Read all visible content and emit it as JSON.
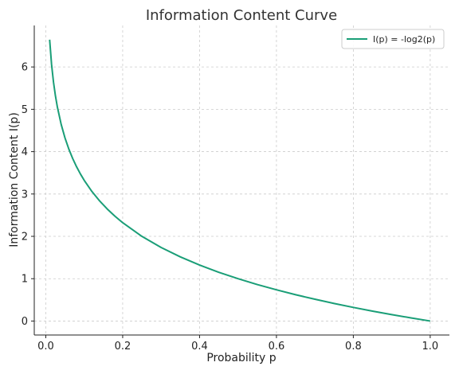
{
  "chart_data": {
    "type": "line",
    "title": "Information Content Curve",
    "xlabel": "Probability p",
    "ylabel": "Information Content I(p)",
    "xlim": [
      -0.03,
      1.05
    ],
    "ylim": [
      -0.33,
      6.98
    ],
    "x_ticks": [
      0.0,
      0.2,
      0.4,
      0.6,
      0.8,
      1.0
    ],
    "x_tick_labels": [
      "0.0",
      "0.2",
      "0.4",
      "0.6",
      "0.8",
      "1.0"
    ],
    "y_ticks": [
      0,
      1,
      2,
      3,
      4,
      5,
      6
    ],
    "y_tick_labels": [
      "0",
      "1",
      "2",
      "3",
      "4",
      "5",
      "6"
    ],
    "grid": true,
    "legend_position": "top-right",
    "series": [
      {
        "name": "I(p) = -log2(p)",
        "color": "#1a9e77",
        "x": [
          0.01,
          0.015,
          0.02,
          0.025,
          0.03,
          0.04,
          0.05,
          0.06,
          0.07,
          0.08,
          0.09,
          0.1,
          0.12,
          0.14,
          0.16,
          0.18,
          0.2,
          0.25,
          0.3,
          0.35,
          0.4,
          0.45,
          0.5,
          0.55,
          0.6,
          0.65,
          0.7,
          0.75,
          0.8,
          0.85,
          0.9,
          0.95,
          1.0
        ],
        "y": [
          6.644,
          6.059,
          5.644,
          5.322,
          5.059,
          4.644,
          4.322,
          4.059,
          3.837,
          3.644,
          3.474,
          3.322,
          3.059,
          2.837,
          2.644,
          2.474,
          2.322,
          2.0,
          1.737,
          1.515,
          1.322,
          1.152,
          1.0,
          0.862,
          0.737,
          0.621,
          0.515,
          0.415,
          0.322,
          0.234,
          0.152,
          0.074,
          0.0
        ]
      }
    ]
  }
}
